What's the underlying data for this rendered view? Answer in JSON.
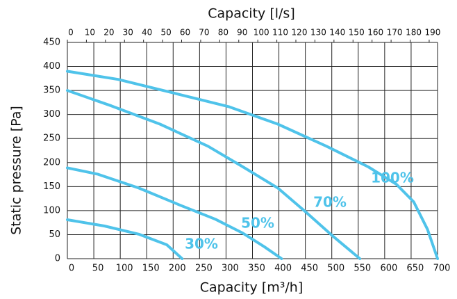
{
  "chart_data": {
    "type": "line",
    "x_label": "Capacity [m³/h]",
    "x2_label": "Capacity [l/s]",
    "y_label": "Static pressure [Pa]",
    "xlim": [
      0,
      700
    ],
    "xticks": [
      0,
      50,
      100,
      150,
      200,
      250,
      300,
      350,
      400,
      450,
      500,
      550,
      600,
      650,
      700
    ],
    "x2lim": [
      0,
      194.4
    ],
    "x2ticks": [
      0,
      10,
      20,
      30,
      40,
      50,
      60,
      70,
      80,
      90,
      100,
      110,
      120,
      130,
      140,
      150,
      160,
      170,
      180,
      190
    ],
    "ylim": [
      0,
      450
    ],
    "yticks": [
      0,
      50,
      100,
      150,
      200,
      250,
      300,
      350,
      400,
      450
    ],
    "grid": true,
    "series": [
      {
        "name": "100%",
        "color": "#4fc3ea",
        "x": [
          0,
          96,
          200,
          306,
          398,
          490,
          569,
          622,
          655,
          681,
          700
        ],
        "values": [
          390,
          373,
          345,
          316,
          280,
          234,
          191,
          155,
          118,
          61,
          0
        ]
      },
      {
        "name": "70%",
        "color": "#4fc3ea",
        "x": [
          0,
          83,
          175,
          266,
          332,
          398,
          451,
          503,
          553
        ],
        "values": [
          350,
          318,
          280,
          234,
          191,
          147,
          97,
          46,
          0
        ]
      },
      {
        "name": "50%",
        "color": "#4fc3ea",
        "x": [
          0,
          57,
          135,
          214,
          280,
          332,
          372,
          405
        ],
        "values": [
          189,
          176,
          147,
          111,
          82,
          53,
          25,
          0
        ]
      },
      {
        "name": "30%",
        "color": "#4fc3ea",
        "x": [
          0,
          70,
          135,
          188,
          217
        ],
        "values": [
          81,
          68,
          51,
          29,
          0
        ]
      }
    ]
  }
}
